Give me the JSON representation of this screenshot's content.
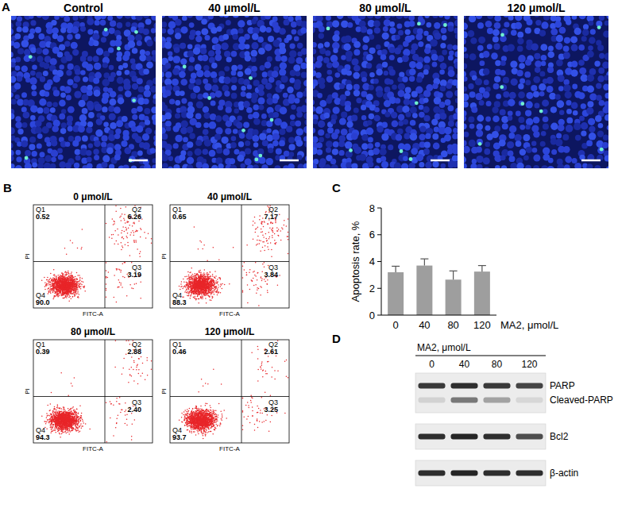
{
  "panel_a": {
    "panel_label": "A",
    "titles": [
      "Control",
      "40 μmol/L",
      "80 μmol/L",
      "120 μmol/L"
    ]
  },
  "panel_b": {
    "panel_label": "B",
    "x_label": "FITC-A",
    "y_label": "PI",
    "plots": [
      {
        "title": "0 μmol/L",
        "quadrants": [
          {
            "name": "Q1",
            "value": 0.52
          },
          {
            "name": "Q2",
            "value": 6.26
          },
          {
            "name": "Q3",
            "value": 3.19
          },
          {
            "name": "Q4",
            "value": 90,
            "label": "90.0"
          }
        ]
      },
      {
        "title": "40 μmol/L",
        "quadrants": [
          {
            "name": "Q1",
            "value": 0.65
          },
          {
            "name": "Q2",
            "value": 7.17
          },
          {
            "name": "Q3",
            "value": 3.84
          },
          {
            "name": "Q4",
            "value": 88.3
          }
        ]
      },
      {
        "title": "80 μmol/L",
        "quadrants": [
          {
            "name": "Q1",
            "value": 0.39
          },
          {
            "name": "Q2",
            "value": 2.88
          },
          {
            "name": "Q3",
            "value": 2.4,
            "label": "2.40"
          },
          {
            "name": "Q4",
            "value": 94.3
          }
        ]
      },
      {
        "title": "120 μmol/L",
        "quadrants": [
          {
            "name": "Q1",
            "value": 0.46
          },
          {
            "name": "Q2",
            "value": 2.61
          },
          {
            "name": "Q3",
            "value": 3.25
          },
          {
            "name": "Q4",
            "value": 93.7
          }
        ]
      }
    ]
  },
  "chart_data": {
    "type": "bar",
    "panel_label": "C",
    "x_label": "MA2, μmol/L",
    "y_label": "Apoptosis rate, %",
    "categories": [
      "0",
      "40",
      "80",
      "120"
    ],
    "values": [
      3.2,
      3.7,
      2.65,
      3.25
    ],
    "errors": [
      0.45,
      0.5,
      0.65,
      0.45
    ],
    "color": "#9e9e9e",
    "ylim": [
      0,
      8
    ],
    "yticks": [
      0,
      2,
      4,
      6,
      8
    ],
    "grid": false
  },
  "panel_d": {
    "panel_label": "D",
    "header": "MA2, μmol/L",
    "lanes": [
      "0",
      "40",
      "80",
      "120"
    ],
    "blots": [
      {
        "rows": [
          {
            "label": "PARP",
            "intensity": [
              0.85,
              0.9,
              0.85,
              0.8
            ]
          },
          {
            "label": "Cleaved-PARP",
            "intensity": [
              0.12,
              0.55,
              0.35,
              0.1
            ]
          }
        ]
      },
      {
        "rows": [
          {
            "label": "Bcl2",
            "intensity": [
              0.9,
              0.95,
              0.9,
              0.75
            ]
          }
        ]
      },
      {
        "rows": [
          {
            "label": "β-actin",
            "intensity": [
              0.9,
              0.95,
              0.9,
              0.9
            ]
          }
        ]
      }
    ]
  }
}
